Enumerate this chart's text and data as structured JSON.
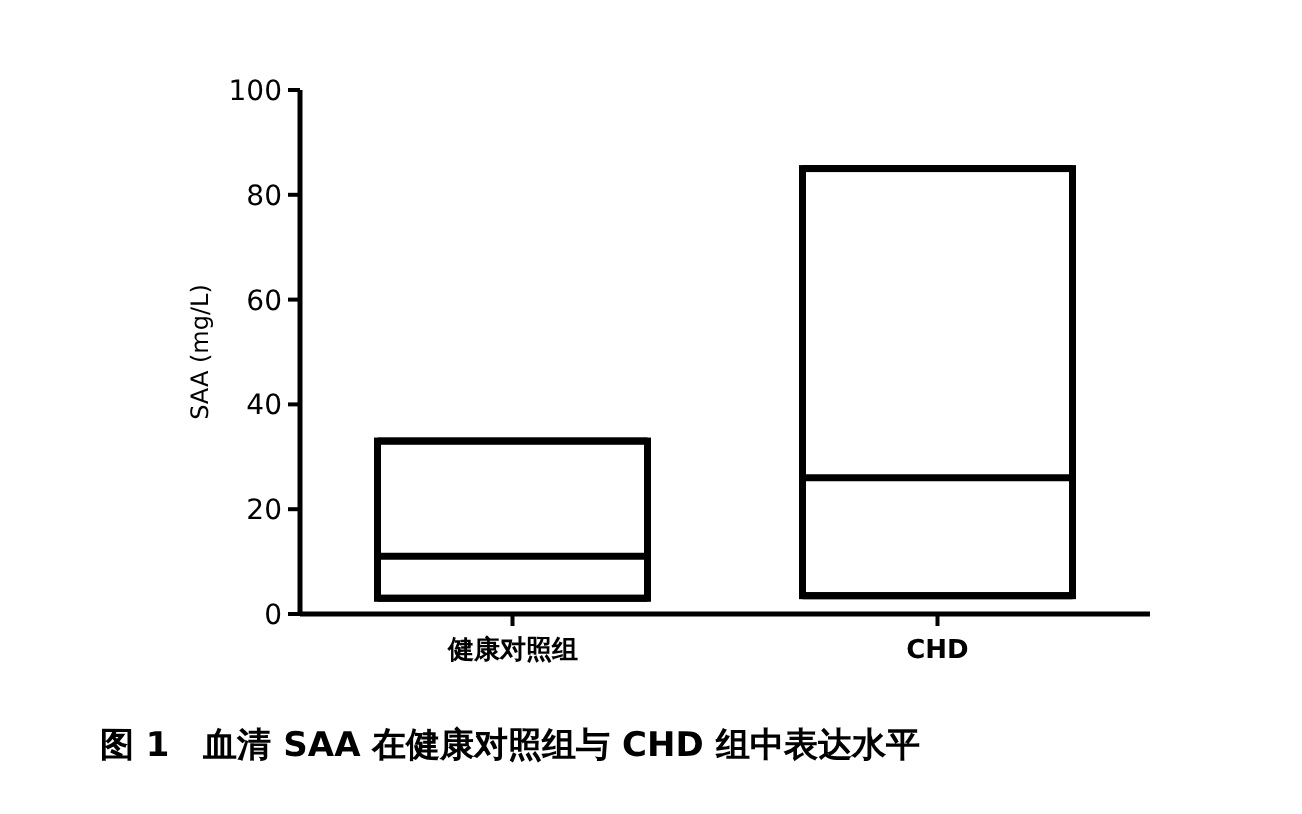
{
  "chart_data": {
    "type": "box",
    "ylabel": "SAA (mg/L)",
    "categories": [
      "健康对照组",
      "CHD"
    ],
    "boxes": [
      {
        "low": 3,
        "q1": 3,
        "median": 11,
        "q3": 33,
        "high": 33
      },
      {
        "low": 3.5,
        "q1": 3.5,
        "median": 26,
        "q3": 85,
        "high": 85
      }
    ],
    "color": "#000000",
    "ylim": [
      0,
      100
    ],
    "yticks": [
      0,
      20,
      40,
      60,
      80,
      100
    ],
    "grid": false,
    "annotations": [
      "图 1　血清 SAA 在健康对照组与 CHD 组中表达水平"
    ]
  }
}
